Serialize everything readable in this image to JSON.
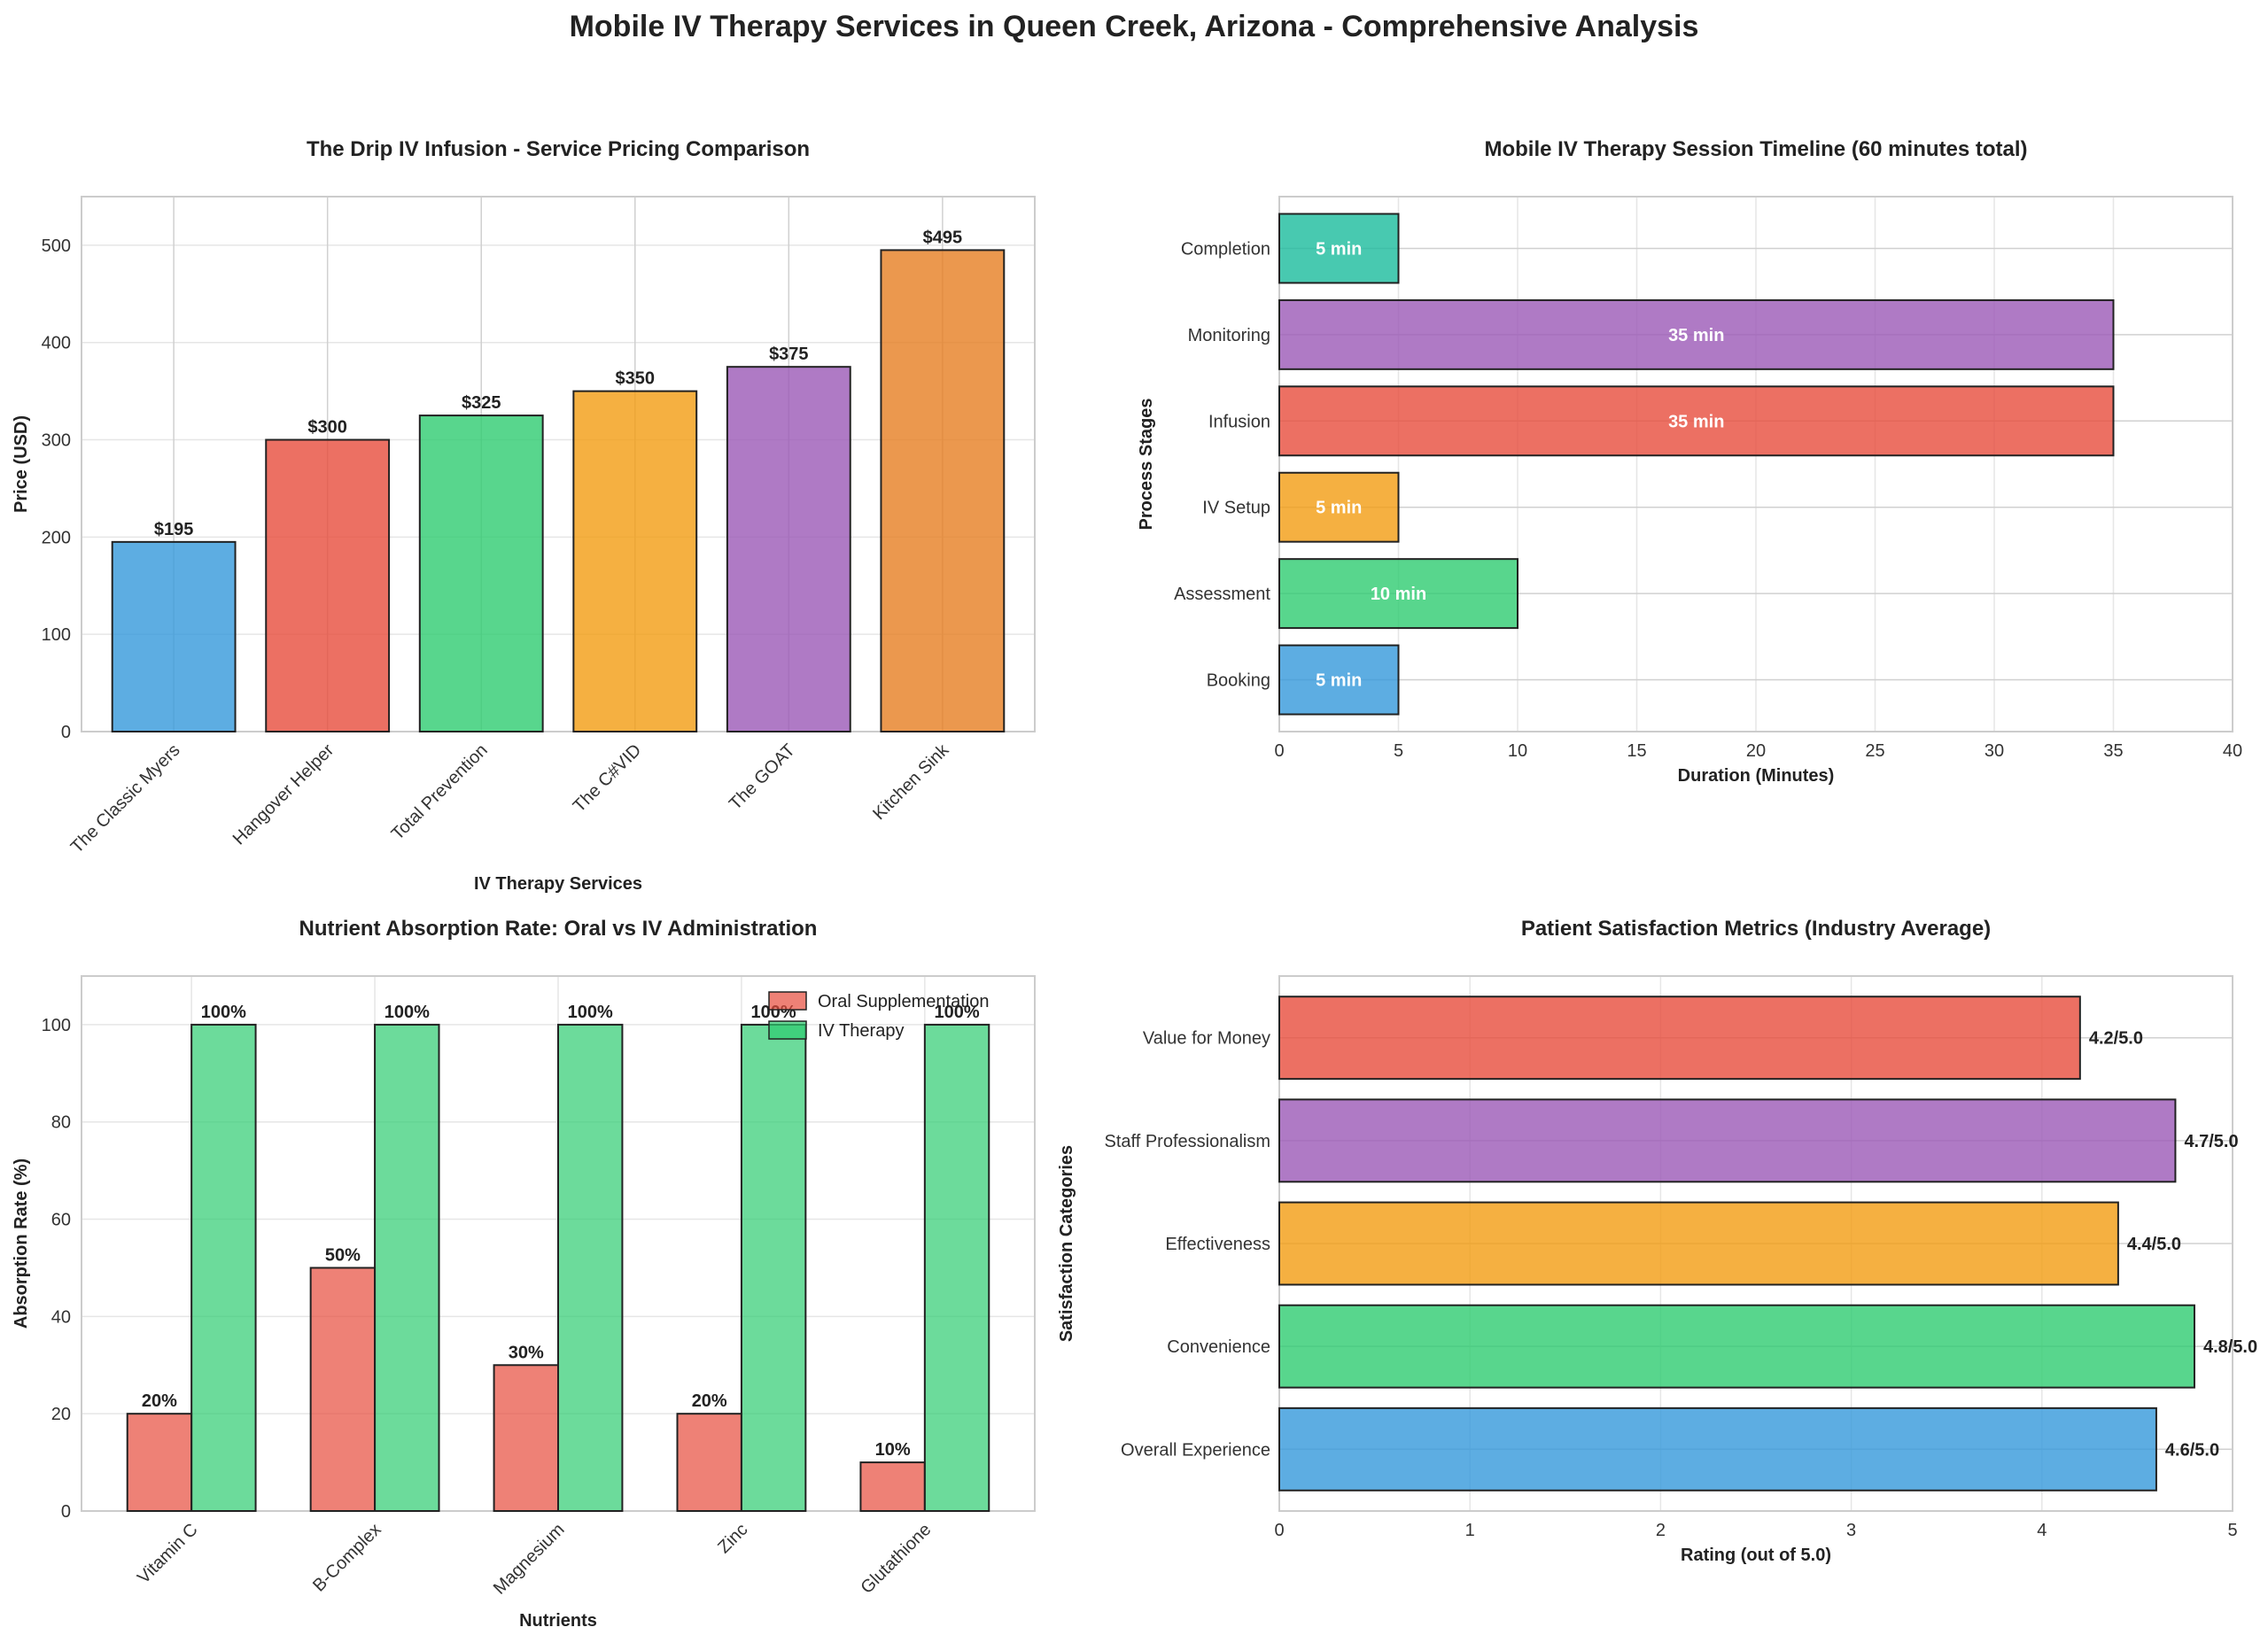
{
  "figure": {
    "title": "Mobile IV Therapy Services in Queen Creek, Arizona - Comprehensive Analysis"
  },
  "chart_data": [
    {
      "id": "pricing",
      "type": "bar",
      "title": "The Drip IV Infusion - Service Pricing Comparison",
      "xlabel": "IV Therapy Services",
      "ylabel": "Price (USD)",
      "categories": [
        "The Classic Myers",
        "Hangover Helper",
        "Total Prevention",
        "The C#VID",
        "The GOAT",
        "Kitchen Sink"
      ],
      "values": [
        195,
        300,
        325,
        350,
        375,
        495
      ],
      "value_labels": [
        "$195",
        "$300",
        "$325",
        "$350",
        "$375",
        "$495"
      ],
      "colors": [
        "#3498db",
        "#e74c3c",
        "#2ecc71",
        "#f39c12",
        "#9b59b6",
        "#e67e22"
      ],
      "ylim": [
        0,
        550
      ],
      "yticks": [
        0,
        100,
        200,
        300,
        400,
        500
      ],
      "grid": true
    },
    {
      "id": "timeline",
      "type": "bar",
      "orientation": "horizontal",
      "title": "Mobile IV Therapy Session Timeline (60 minutes total)",
      "xlabel": "Duration (Minutes)",
      "ylabel": "Process Stages",
      "categories": [
        "Booking",
        "Assessment",
        "IV Setup",
        "Infusion",
        "Monitoring",
        "Completion"
      ],
      "values": [
        5,
        10,
        5,
        35,
        35,
        5
      ],
      "value_labels": [
        "5 min",
        "10 min",
        "5 min",
        "35 min",
        "35 min",
        "5 min"
      ],
      "colors": [
        "#3498db",
        "#2ecc71",
        "#f39c12",
        "#e74c3c",
        "#9b59b6",
        "#1abc9c"
      ],
      "xlim": [
        0,
        40
      ],
      "xticks": [
        0,
        5,
        10,
        15,
        20,
        25,
        30,
        35,
        40
      ],
      "grid": true
    },
    {
      "id": "absorption",
      "type": "bar",
      "title": "Nutrient Absorption Rate: Oral vs IV Administration",
      "xlabel": "Nutrients",
      "ylabel": "Absorption Rate (%)",
      "categories": [
        "Vitamin C",
        "B-Complex",
        "Magnesium",
        "Zinc",
        "Glutathione"
      ],
      "series": [
        {
          "name": "Oral Supplementation",
          "values": [
            20,
            50,
            30,
            20,
            10
          ],
          "value_labels": [
            "20%",
            "50%",
            "30%",
            "20%",
            "10%"
          ],
          "color": "#e74c3c"
        },
        {
          "name": "IV Therapy",
          "values": [
            100,
            100,
            100,
            100,
            100
          ],
          "value_labels": [
            "100%",
            "100%",
            "100%",
            "100%",
            "100%"
          ],
          "color": "#2ecc71"
        }
      ],
      "ylim": [
        0,
        110
      ],
      "yticks": [
        0,
        20,
        40,
        60,
        80,
        100
      ],
      "legend": "upper-right",
      "grid": true
    },
    {
      "id": "satisfaction",
      "type": "bar",
      "orientation": "horizontal",
      "title": "Patient Satisfaction Metrics (Industry Average)",
      "xlabel": "Rating (out of 5.0)",
      "ylabel": "Satisfaction Categories",
      "categories": [
        "Overall Experience",
        "Convenience",
        "Effectiveness",
        "Staff Professionalism",
        "Value for Money"
      ],
      "values": [
        4.6,
        4.8,
        4.4,
        4.7,
        4.2
      ],
      "value_labels": [
        "4.6/5.0",
        "4.8/5.0",
        "4.4/5.0",
        "4.7/5.0",
        "4.2/5.0"
      ],
      "colors": [
        "#3498db",
        "#2ecc71",
        "#f39c12",
        "#9b59b6",
        "#e74c3c"
      ],
      "xlim": [
        0,
        5
      ],
      "xticks": [
        0,
        1,
        2,
        3,
        4,
        5
      ],
      "grid": true
    }
  ]
}
